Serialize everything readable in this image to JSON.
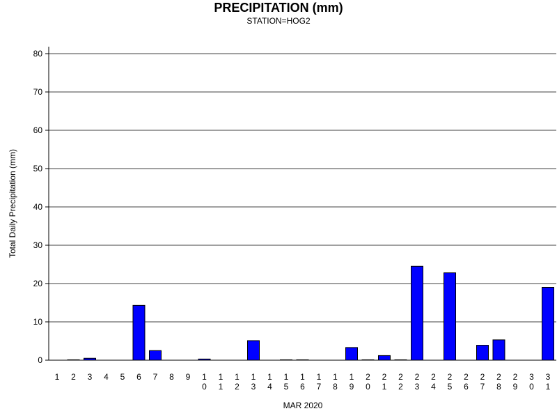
{
  "chart_data": {
    "type": "bar",
    "title": "PRECIPITATION (mm)",
    "subtitle": "STATION=HOG2",
    "xlabel": "MAR 2020",
    "ylabel": "Total Daily Precipitation (mm)",
    "ylim": [
      0,
      80
    ],
    "yticks": [
      0,
      10,
      20,
      30,
      40,
      50,
      60,
      70,
      80
    ],
    "grid": true,
    "bar_color": "#0000ff",
    "categories": [
      "1",
      "2",
      "3",
      "4",
      "5",
      "6",
      "7",
      "8",
      "9",
      "10",
      "11",
      "12",
      "13",
      "14",
      "15",
      "16",
      "17",
      "18",
      "19",
      "20",
      "21",
      "22",
      "23",
      "24",
      "25",
      "26",
      "27",
      "28",
      "29",
      "30",
      "31"
    ],
    "values": [
      0,
      0.1,
      0.5,
      0,
      0,
      14.3,
      2.5,
      0,
      0,
      0.3,
      0,
      0,
      5.1,
      0,
      0.1,
      0.1,
      0,
      0,
      3.3,
      0.1,
      1.2,
      0.1,
      24.5,
      0,
      22.8,
      0,
      3.9,
      5.3,
      0,
      0,
      19.0
    ]
  }
}
